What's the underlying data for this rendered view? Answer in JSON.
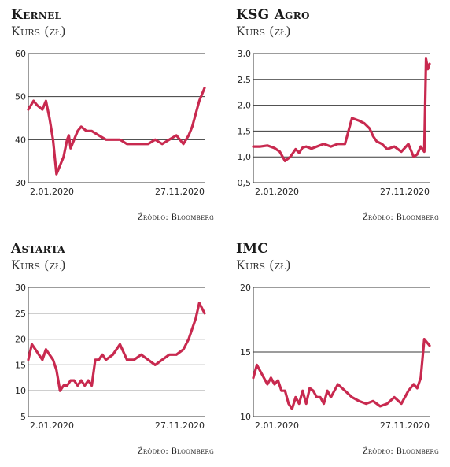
{
  "source_label": "Źródło: Bloomberg",
  "chart_data": [
    {
      "type": "line",
      "title": "Kernel",
      "ylabel": "Kurs (zł)",
      "xlabel": "",
      "ylim": [
        30,
        60
      ],
      "yticks": [
        "30",
        "40",
        "50",
        "60"
      ],
      "x_ticks": [
        "2.01.2020",
        "27.11.2020"
      ],
      "grid": true,
      "line_color": "#c8294f",
      "series": [
        {
          "x": [
            0,
            3,
            5,
            8,
            10,
            12,
            14,
            16,
            18,
            20,
            22,
            23,
            24,
            26,
            28,
            30,
            33,
            36,
            40,
            44,
            48,
            52,
            56,
            60,
            64,
            68,
            72,
            76,
            80,
            84,
            88,
            91,
            93,
            95,
            97,
            100
          ],
          "values": [
            47,
            49,
            48,
            47,
            49,
            45,
            40,
            32,
            34,
            36,
            40,
            41,
            38,
            40,
            42,
            43,
            42,
            42,
            41,
            40,
            40,
            40,
            39,
            39,
            39,
            39,
            40,
            39,
            40,
            41,
            39,
            41,
            43,
            46,
            49,
            52
          ]
        }
      ]
    },
    {
      "type": "line",
      "title": "KSG Agro",
      "ylabel": "Kurs (zł)",
      "xlabel": "",
      "ylim": [
        0.5,
        3.0
      ],
      "yticks": [
        "0,5",
        "1,0",
        "1,5",
        "2,0",
        "2,5",
        "3,0"
      ],
      "x_ticks": [
        "2.01.2020",
        "27.11.2020"
      ],
      "grid": true,
      "line_color": "#c8294f",
      "series": [
        {
          "x": [
            0,
            4,
            8,
            12,
            15,
            18,
            21,
            24,
            26,
            28,
            30,
            33,
            36,
            40,
            44,
            48,
            52,
            56,
            60,
            63,
            66,
            68,
            70,
            73,
            76,
            80,
            84,
            88,
            91,
            93,
            95,
            97,
            98,
            99,
            100
          ],
          "values": [
            1.2,
            1.2,
            1.22,
            1.17,
            1.1,
            0.92,
            1.0,
            1.15,
            1.08,
            1.18,
            1.2,
            1.16,
            1.2,
            1.25,
            1.2,
            1.25,
            1.25,
            1.75,
            1.7,
            1.65,
            1.55,
            1.4,
            1.3,
            1.25,
            1.15,
            1.2,
            1.1,
            1.25,
            1.0,
            1.05,
            1.2,
            1.1,
            2.9,
            2.7,
            2.8
          ]
        }
      ]
    },
    {
      "type": "line",
      "title": "Astarta",
      "ylabel": "Kurs (zł)",
      "xlabel": "",
      "ylim": [
        5,
        30
      ],
      "yticks": [
        "5",
        "10",
        "15",
        "20",
        "25",
        "30"
      ],
      "x_ticks": [
        "2.01.2020",
        "27.11.2020"
      ],
      "grid": true,
      "line_color": "#c8294f",
      "series": [
        {
          "x": [
            0,
            2,
            4,
            6,
            8,
            10,
            12,
            14,
            16,
            18,
            20,
            22,
            24,
            26,
            28,
            30,
            32,
            34,
            36,
            38,
            40,
            42,
            44,
            48,
            52,
            56,
            60,
            64,
            68,
            72,
            76,
            80,
            84,
            88,
            91,
            93,
            95,
            97,
            100
          ],
          "values": [
            16,
            19,
            18,
            17,
            16,
            18,
            17,
            16,
            14,
            10,
            11,
            11,
            12,
            12,
            11,
            12,
            11,
            12,
            11,
            16,
            16,
            17,
            16,
            17,
            19,
            16,
            16,
            17,
            16,
            15,
            16,
            17,
            17,
            18,
            20,
            22,
            24,
            27,
            25
          ]
        }
      ]
    },
    {
      "type": "line",
      "title": "IMC",
      "ylabel": "Kurs (zł)",
      "xlabel": "",
      "ylim": [
        10,
        20
      ],
      "yticks": [
        "10",
        "15",
        "20"
      ],
      "x_ticks": [
        "2.01.2020",
        "27.11.2020"
      ],
      "grid": true,
      "line_color": "#c8294f",
      "series": [
        {
          "x": [
            0,
            2,
            4,
            6,
            8,
            10,
            12,
            14,
            16,
            18,
            20,
            22,
            24,
            26,
            28,
            30,
            32,
            34,
            36,
            38,
            40,
            42,
            44,
            46,
            48,
            52,
            56,
            60,
            64,
            68,
            72,
            76,
            80,
            84,
            88,
            91,
            93,
            95,
            97,
            100
          ],
          "values": [
            13,
            14,
            13.5,
            13,
            12.5,
            13,
            12.5,
            12.8,
            12,
            12,
            11,
            10.6,
            11.5,
            11,
            12,
            11,
            12.2,
            12,
            11.5,
            11.5,
            11,
            12,
            11.5,
            12,
            12.5,
            12,
            11.5,
            11.2,
            11,
            11.2,
            10.8,
            11,
            11.5,
            11,
            12,
            12.5,
            12.2,
            13,
            16,
            15.5
          ]
        }
      ]
    }
  ]
}
